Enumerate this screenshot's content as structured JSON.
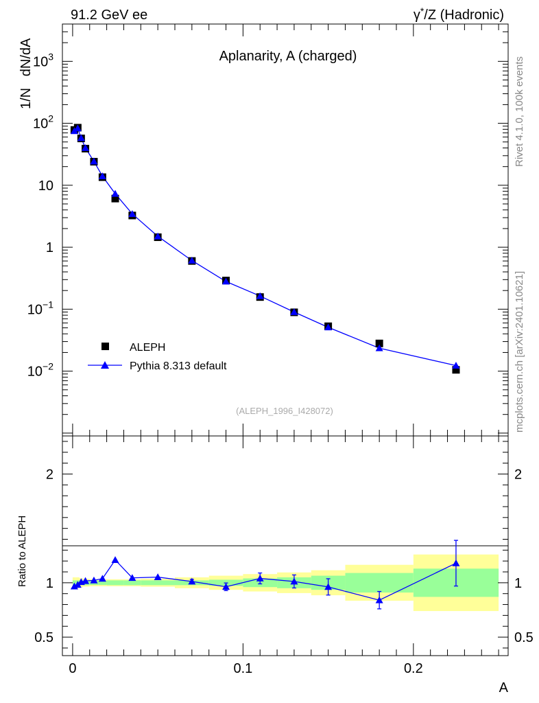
{
  "header": {
    "left": "91.2 GeV ee",
    "right_sym": "γ",
    "right_sup": "*",
    "right_rest": "/Z (Hadronic)"
  },
  "side": {
    "rivet": "Rivet 4.1.0,  100k events",
    "mcplots": "mcplots.cern.ch [arXiv:2401.10621]"
  },
  "chart_data": [
    {
      "type": "scatter",
      "panel": "main",
      "title": "Aplanarity, A (charged)",
      "ylabel": "1/N   dN/dA",
      "xlabel": "A",
      "yscale": "log",
      "xlim": [
        -0.006,
        0.2556
      ],
      "ylim": [
        0.0009,
        4000
      ],
      "watermark": "(ALEPH_1996_I428072)",
      "legend_position": "lower-left",
      "yticks": [
        {
          "value": 0.01,
          "base": "10",
          "exp": "−2"
        },
        {
          "value": 0.1,
          "base": "10",
          "exp": "−1"
        },
        {
          "value": 1,
          "base": "1",
          "exp": ""
        },
        {
          "value": 10,
          "base": "10",
          "exp": ""
        },
        {
          "value": 100,
          "base": "10",
          "exp": "2"
        },
        {
          "value": 1000,
          "base": "10",
          "exp": "3"
        }
      ],
      "series": [
        {
          "name": "ALEPH",
          "marker": "square",
          "color": "#000000",
          "x": [
            0.001,
            0.003,
            0.005,
            0.0075,
            0.0125,
            0.0175,
            0.025,
            0.035,
            0.05,
            0.07,
            0.09,
            0.11,
            0.13,
            0.15,
            0.18,
            0.225
          ],
          "y": [
            78,
            85,
            57,
            39,
            24,
            13.5,
            6.1,
            3.25,
            1.45,
            0.6,
            0.29,
            0.157,
            0.089,
            0.053,
            0.028,
            0.0105
          ]
        },
        {
          "name": "Pythia 8.313 default",
          "marker": "triangle",
          "color": "#0000ff",
          "x": [
            0.001,
            0.003,
            0.005,
            0.0075,
            0.0125,
            0.0175,
            0.025,
            0.035,
            0.05,
            0.07,
            0.09,
            0.11,
            0.13,
            0.15,
            0.18,
            0.225
          ],
          "y": [
            75,
            83,
            58,
            40,
            24.3,
            14,
            7.3,
            3.45,
            1.5,
            0.61,
            0.28,
            0.163,
            0.09,
            0.051,
            0.0235,
            0.0123
          ]
        }
      ]
    },
    {
      "type": "line",
      "panel": "ratio",
      "ylabel": "Ratio to ALEPH",
      "xlabel": "A",
      "xlim": [
        -0.006,
        0.2556
      ],
      "ylim": [
        0.33,
        2.35
      ],
      "yticks": [
        0.5,
        1,
        2
      ],
      "xticks": [
        {
          "value": 0,
          "label": "0"
        },
        {
          "value": 0.1,
          "label": "0.1"
        },
        {
          "value": 0.2,
          "label": "0.2"
        }
      ],
      "bands": {
        "edges": [
          0,
          0.002,
          0.004,
          0.006,
          0.01,
          0.015,
          0.02,
          0.03,
          0.04,
          0.06,
          0.08,
          0.1,
          0.12,
          0.14,
          0.16,
          0.2,
          0.25
        ],
        "inner_halfwidth": [
          0.022,
          0.022,
          0.022,
          0.022,
          0.02,
          0.02,
          0.022,
          0.022,
          0.022,
          0.022,
          0.028,
          0.04,
          0.05,
          0.065,
          0.09,
          0.13
        ],
        "outer_halfwidth": [
          0.05,
          0.05,
          0.042,
          0.035,
          0.032,
          0.032,
          0.032,
          0.032,
          0.036,
          0.05,
          0.065,
          0.08,
          0.095,
          0.115,
          0.165,
          0.26
        ],
        "inner_color": "#99ff99",
        "outer_color": "#ffff99"
      },
      "series": [
        {
          "name": "Pythia 8.313 default / ALEPH",
          "color": "#0000ff",
          "x": [
            0.001,
            0.003,
            0.005,
            0.0075,
            0.0125,
            0.0175,
            0.025,
            0.035,
            0.05,
            0.07,
            0.09,
            0.11,
            0.13,
            0.15,
            0.18,
            0.225
          ],
          "y": [
            0.967,
            0.982,
            1.007,
            1.017,
            1.022,
            1.038,
            1.21,
            1.045,
            1.052,
            1.012,
            0.963,
            1.04,
            1.012,
            0.962,
            0.84,
            1.18
          ],
          "err": [
            0.006,
            0.006,
            0.006,
            0.006,
            0.006,
            0.006,
            0.008,
            0.008,
            0.01,
            0.02,
            0.035,
            0.05,
            0.06,
            0.075,
            0.08,
            0.21
          ]
        }
      ]
    }
  ]
}
